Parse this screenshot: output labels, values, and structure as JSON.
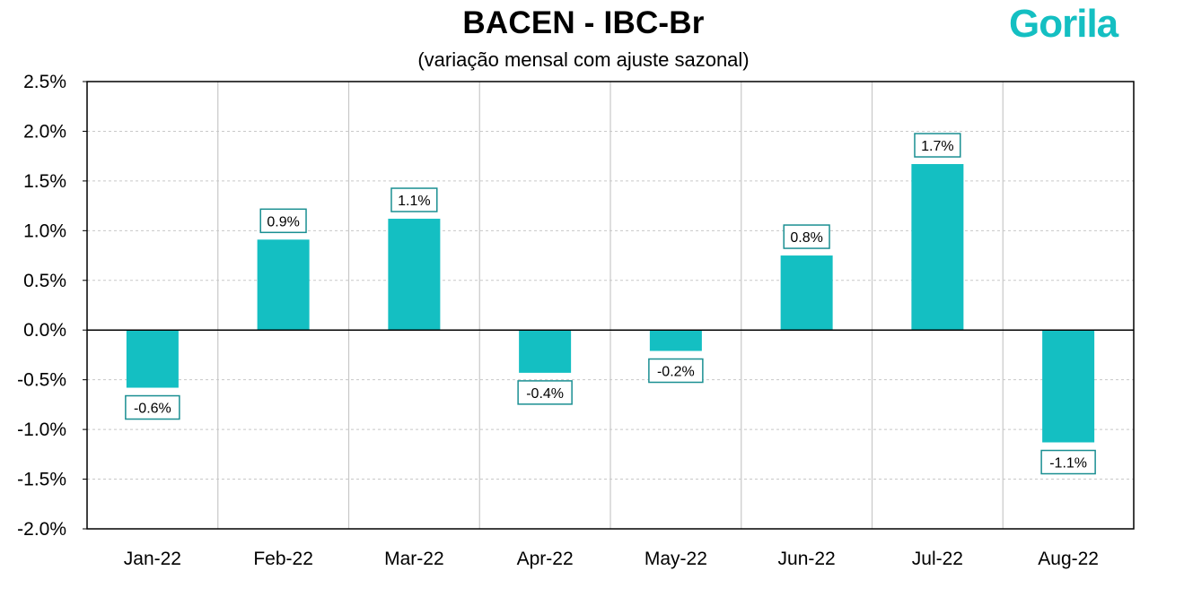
{
  "header": {
    "title": "BACEN - IBC-Br",
    "subtitle": "(variação mensal com ajuste sazonal)",
    "logo_text": "Gorila"
  },
  "colors": {
    "bar": "#14bfc2",
    "label_border": "#1a8f92",
    "gridline": "#c8c8c8",
    "axis": "#000000",
    "logo": "#14bfc2"
  },
  "chart_data": {
    "type": "bar",
    "title": "BACEN - IBC-Br",
    "subtitle": "(variação mensal com ajuste sazonal)",
    "xlabel": "",
    "ylabel": "",
    "categories": [
      "Jan-22",
      "Feb-22",
      "Mar-22",
      "Apr-22",
      "May-22",
      "Jun-22",
      "Jul-22",
      "Aug-22"
    ],
    "values": [
      -0.6,
      0.9,
      1.1,
      -0.4,
      -0.2,
      0.8,
      1.7,
      -1.1
    ],
    "bar_values_precise": [
      -0.58,
      0.91,
      1.12,
      -0.43,
      -0.21,
      0.75,
      1.67,
      -1.13
    ],
    "data_labels": [
      "-0.6%",
      "0.9%",
      "1.1%",
      "-0.4%",
      "-0.2%",
      "0.8%",
      "1.7%",
      "-1.1%"
    ],
    "ylim": [
      -2.0,
      2.5
    ],
    "yticks": [
      2.5,
      2.0,
      1.5,
      1.0,
      0.5,
      0.0,
      -0.5,
      -1.0,
      -1.5,
      -2.0
    ],
    "ytick_labels": [
      "2.5%",
      "2.0%",
      "1.5%",
      "1.0%",
      "0.5%",
      "0.0%",
      "-0.5%",
      "-1.0%",
      "-1.5%",
      "-2.0%"
    ],
    "grid": "horizontal dashed, vertical solid between categories",
    "legend": "none"
  }
}
